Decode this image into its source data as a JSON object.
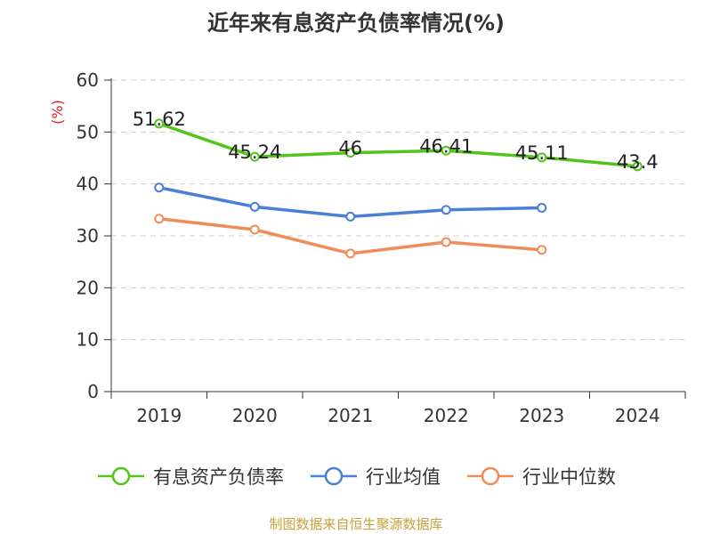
{
  "title": "近年来有息资产负债率情况(%)",
  "source": "制图数据来自恒生聚源数据库",
  "colors": {
    "axis": "#333333",
    "grid": "#cccccc",
    "ylabel": "#e02020"
  },
  "chart_data": {
    "type": "line",
    "title": "近年来有息资产负债率情况(%)",
    "xlabel": "",
    "ylabel": "(%)",
    "categories": [
      "2019",
      "2020",
      "2021",
      "2022",
      "2023",
      "2024"
    ],
    "ylim": [
      0,
      60
    ],
    "yticks": [
      0,
      10,
      20,
      30,
      40,
      50,
      60
    ],
    "grid": true,
    "legend_position": "bottom",
    "series": [
      {
        "name": "有息资产负债率",
        "color": "#52c41a",
        "values": [
          51.62,
          45.24,
          46,
          46.41,
          45.11,
          43.4
        ],
        "data_labels": [
          "51.62",
          "45.24",
          "46",
          "46.41",
          "45.11",
          "43.4"
        ]
      },
      {
        "name": "行业均值",
        "color": "#4a7fd6",
        "values": [
          39.3,
          35.6,
          33.7,
          35.0,
          35.4,
          null
        ]
      },
      {
        "name": "行业中位数",
        "color": "#f08c5a",
        "values": [
          33.3,
          31.2,
          26.6,
          28.8,
          27.3,
          null
        ]
      }
    ]
  }
}
